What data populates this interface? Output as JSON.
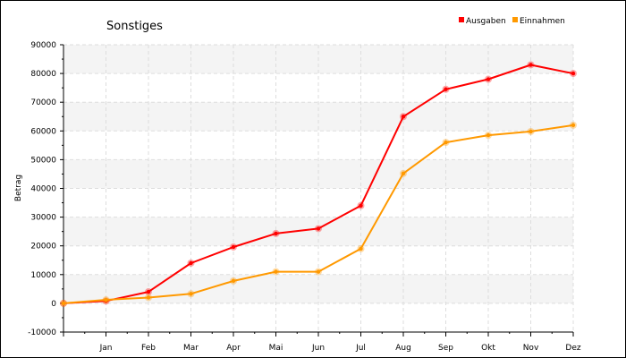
{
  "chart_data": {
    "type": "line",
    "title": "Sonstiges",
    "xlabel": "",
    "ylabel": "Betrag",
    "categories": [
      "",
      "Jan",
      "Feb",
      "Mar",
      "Apr",
      "Mai",
      "Jun",
      "Jul",
      "Aug",
      "Sep",
      "Okt",
      "Nov",
      "Dez"
    ],
    "ylim": [
      -10000,
      90000
    ],
    "yticks": [
      -10000,
      0,
      10000,
      20000,
      30000,
      40000,
      50000,
      60000,
      70000,
      80000,
      90000
    ],
    "grid": true,
    "legend_position": "top-right",
    "series": [
      {
        "name": "Ausgaben",
        "color": "#ff0000",
        "values": [
          0,
          800,
          4000,
          14000,
          19600,
          24300,
          26000,
          34000,
          65000,
          74500,
          78000,
          83000,
          80000
        ]
      },
      {
        "name": "Einnahmen",
        "color": "#ff9900",
        "values": [
          0,
          1200,
          2000,
          3300,
          7800,
          11000,
          11000,
          19000,
          45200,
          56000,
          58500,
          59800,
          62000
        ]
      }
    ]
  }
}
